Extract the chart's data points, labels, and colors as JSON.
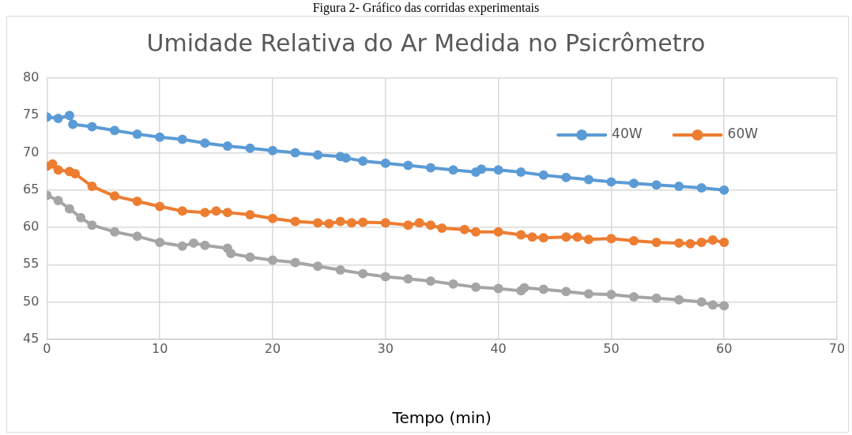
{
  "chart_data": {
    "type": "line",
    "title": "Umidade Relativa do Ar Medida no Psicrômetro",
    "xlabel": "Tempo (min)",
    "annotations": [
      "Figura 2- Gráfico das corridas experimentais"
    ],
    "xlim": [
      0,
      70
    ],
    "xticks": [
      0,
      10,
      20,
      30,
      40,
      50,
      60,
      70
    ],
    "ylim": [
      45,
      80
    ],
    "yticks": [
      45,
      50,
      55,
      60,
      65,
      70,
      75,
      80
    ],
    "grid": true,
    "legend": "top right",
    "marker": "circle",
    "line_style": "solid",
    "series": [
      {
        "name": "40W",
        "color": "#5b9bd5",
        "x": [
          0,
          1,
          2,
          2.3,
          4,
          6,
          8,
          10,
          12,
          14,
          16,
          18,
          20,
          22,
          24,
          26,
          26.5,
          28,
          30,
          32,
          34,
          36,
          38,
          38.5,
          40,
          42,
          44,
          46,
          48,
          50,
          52,
          54,
          56,
          58,
          60
        ],
        "values": [
          74.8,
          74.6,
          75.0,
          73.8,
          73.5,
          73.0,
          72.5,
          72.1,
          71.8,
          71.3,
          70.9,
          70.6,
          70.3,
          70.0,
          69.7,
          69.5,
          69.3,
          68.9,
          68.6,
          68.3,
          68.0,
          67.7,
          67.4,
          67.8,
          67.7,
          67.4,
          67.0,
          66.7,
          66.4,
          66.1,
          65.9,
          65.7,
          65.5,
          65.3,
          65.0
        ]
      },
      {
        "name": "60W",
        "color": "#ed7d31",
        "x": [
          0,
          0.5,
          1,
          2,
          2.5,
          4,
          6,
          8,
          10,
          12,
          14,
          15,
          16,
          18,
          20,
          22,
          24,
          25,
          26,
          27,
          28,
          30,
          32,
          33,
          34,
          35,
          37,
          38,
          40,
          42,
          43,
          44,
          46,
          47,
          48,
          50,
          52,
          54,
          56,
          57,
          58,
          59,
          60
        ],
        "values": [
          68.2,
          68.5,
          67.7,
          67.5,
          67.2,
          65.5,
          64.2,
          63.5,
          62.8,
          62.2,
          62.0,
          62.2,
          62.0,
          61.7,
          61.2,
          60.8,
          60.6,
          60.5,
          60.8,
          60.6,
          60.7,
          60.6,
          60.3,
          60.6,
          60.3,
          59.9,
          59.7,
          59.4,
          59.4,
          59.0,
          58.7,
          58.6,
          58.7,
          58.7,
          58.4,
          58.5,
          58.2,
          58.0,
          57.9,
          57.8,
          58.0,
          58.3,
          58.0
        ]
      },
      {
        "color": "#a5a5a5",
        "x": [
          0,
          1,
          2,
          3,
          4,
          6,
          8,
          10,
          12,
          13,
          14,
          16,
          16.3,
          18,
          20,
          22,
          24,
          26,
          28,
          30,
          32,
          34,
          36,
          38,
          40,
          42,
          42.3,
          44,
          46,
          48,
          50,
          52,
          54,
          56,
          58,
          59,
          60
        ],
        "values": [
          64.3,
          63.6,
          62.5,
          61.3,
          60.3,
          59.4,
          58.8,
          58.0,
          57.5,
          57.9,
          57.6,
          57.2,
          56.5,
          56.0,
          55.6,
          55.3,
          54.8,
          54.3,
          53.8,
          53.4,
          53.1,
          52.8,
          52.4,
          52.0,
          51.8,
          51.5,
          51.9,
          51.7,
          51.4,
          51.1,
          51.0,
          50.7,
          50.5,
          50.3,
          50.0,
          49.6,
          49.5
        ]
      }
    ]
  }
}
